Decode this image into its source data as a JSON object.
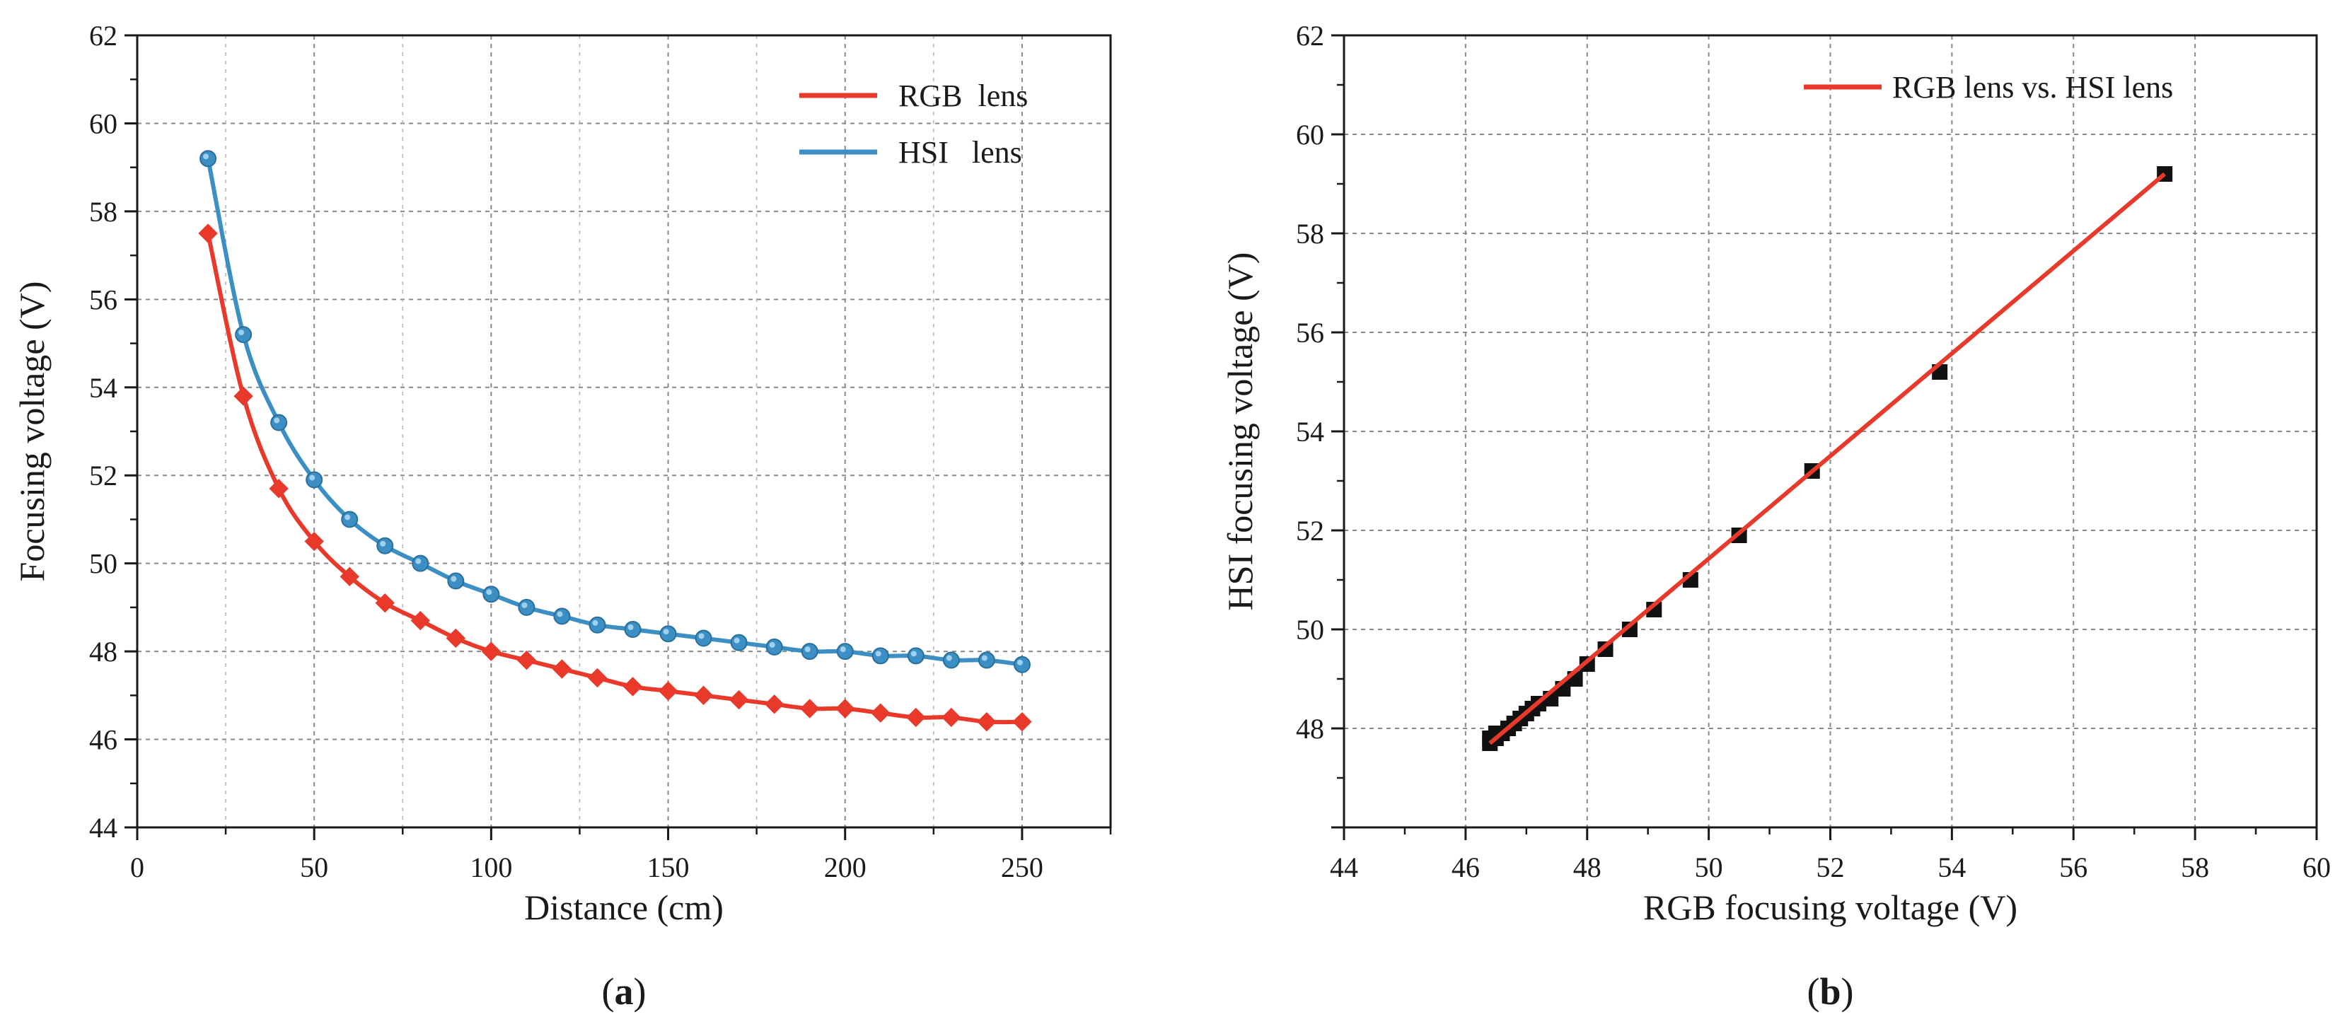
{
  "chart_data": [
    {
      "id": "a",
      "type": "line",
      "panel_label": "a",
      "title": "",
      "xlabel": "Distance (cm)",
      "ylabel": "Focusing voltage (V)",
      "xlim": [
        0,
        275
      ],
      "ylim": [
        44,
        62
      ],
      "xticks": [
        0,
        50,
        100,
        150,
        200,
        250
      ],
      "yticks": [
        44,
        46,
        48,
        50,
        52,
        54,
        56,
        58,
        60,
        62
      ],
      "grid": true,
      "legend_position": "top-right",
      "x": [
        20,
        30,
        40,
        50,
        60,
        70,
        80,
        90,
        100,
        110,
        120,
        130,
        140,
        150,
        160,
        170,
        180,
        190,
        200,
        210,
        220,
        230,
        240,
        250
      ],
      "series": [
        {
          "name": "RGB  lens",
          "color": "#e8392b",
          "marker": "diamond",
          "values": [
            57.5,
            53.8,
            51.7,
            50.5,
            49.7,
            49.1,
            48.7,
            48.3,
            48.0,
            47.8,
            47.6,
            47.4,
            47.2,
            47.1,
            47.0,
            46.9,
            46.8,
            46.7,
            46.7,
            46.6,
            46.5,
            46.5,
            46.4,
            46.4
          ]
        },
        {
          "name": "HSI   lens",
          "color": "#3c8fc4",
          "marker": "circle",
          "values": [
            59.2,
            55.2,
            53.2,
            51.9,
            51.0,
            50.4,
            50.0,
            49.6,
            49.3,
            49.0,
            48.8,
            48.6,
            48.5,
            48.4,
            48.3,
            48.2,
            48.1,
            48.0,
            48.0,
            47.9,
            47.9,
            47.8,
            47.8,
            47.7
          ]
        }
      ]
    },
    {
      "id": "b",
      "type": "scatter",
      "panel_label": "b",
      "title": "",
      "xlabel": "RGB focusing voltage (V)",
      "ylabel": "HSI focusing voltage (V)",
      "xlim": [
        44,
        60
      ],
      "ylim": [
        46,
        62
      ],
      "xticks": [
        44,
        46,
        48,
        50,
        52,
        54,
        56,
        58,
        60
      ],
      "yticks": [
        48,
        50,
        52,
        54,
        56,
        58,
        60,
        62
      ],
      "grid": true,
      "legend_position": "top-right",
      "series": [
        {
          "name": "RGB lens vs. HSI lens",
          "color": "#e8392b",
          "marker_color": "#111111",
          "marker": "square",
          "x": [
            57.5,
            53.8,
            51.7,
            50.5,
            49.7,
            49.1,
            48.7,
            48.3,
            48.0,
            47.8,
            47.6,
            47.4,
            47.2,
            47.1,
            47.0,
            46.9,
            46.8,
            46.7,
            46.7,
            46.6,
            46.5,
            46.5,
            46.4,
            46.4
          ],
          "y": [
            59.2,
            55.2,
            53.2,
            51.9,
            51.0,
            50.4,
            50.0,
            49.6,
            49.3,
            49.0,
            48.8,
            48.6,
            48.5,
            48.4,
            48.3,
            48.2,
            48.1,
            48.0,
            48.0,
            47.9,
            47.9,
            47.8,
            47.8,
            47.7
          ]
        }
      ],
      "fit_line": {
        "x": [
          46.4,
          57.5
        ],
        "y": [
          47.7,
          59.2
        ]
      }
    }
  ]
}
